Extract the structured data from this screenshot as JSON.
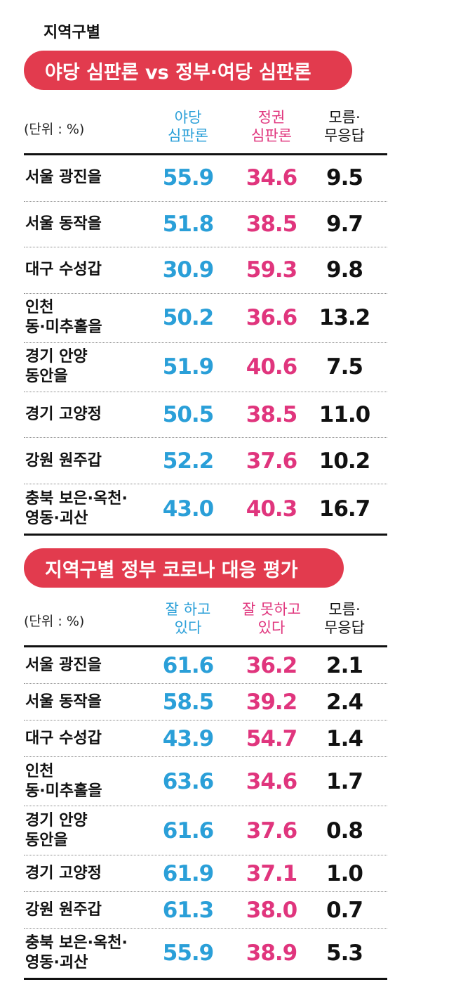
{
  "header": {
    "title": "지역구별"
  },
  "chart_data": [
    {
      "type": "table",
      "title": "야당 심판론 vs 정부·여당 심판론",
      "unit_label": "(단위 : %)",
      "columns": [
        "야당\n심판론",
        "정권\n심판론",
        "모름·\n무응답"
      ],
      "rows": [
        {
          "label": "서울 광진을",
          "values": [
            "55.9",
            "34.6",
            "9.5"
          ]
        },
        {
          "label": "서울 동작을",
          "values": [
            "51.8",
            "38.5",
            "9.7"
          ]
        },
        {
          "label": "대구 수성갑",
          "values": [
            "30.9",
            "59.3",
            "9.8"
          ]
        },
        {
          "label": "인천\n동·미추홀을",
          "values": [
            "50.2",
            "36.6",
            "13.2"
          ]
        },
        {
          "label": "경기 안양\n동안을",
          "values": [
            "51.9",
            "40.6",
            "7.5"
          ]
        },
        {
          "label": "경기 고양정",
          "values": [
            "50.5",
            "38.5",
            "11.0"
          ]
        },
        {
          "label": "강원 원주갑",
          "values": [
            "52.2",
            "37.6",
            "10.2"
          ]
        },
        {
          "label": "충북 보은·옥천·\n영동·괴산",
          "values": [
            "43.0",
            "40.3",
            "16.7"
          ]
        }
      ],
      "colors": {
        "col1": "#2a9fd8",
        "col2": "#e0357d",
        "col3": "#111111",
        "title_bg": "#e23b4e"
      }
    },
    {
      "type": "table",
      "title": "지역구별 정부 코로나 대응 평가",
      "unit_label": "(단위 : %)",
      "columns": [
        "잘 하고\n있다",
        "잘 못하고\n있다",
        "모름·\n무응답"
      ],
      "rows": [
        {
          "label": "서울 광진을",
          "values": [
            "61.6",
            "36.2",
            "2.1"
          ]
        },
        {
          "label": "서울 동작을",
          "values": [
            "58.5",
            "39.2",
            "2.4"
          ]
        },
        {
          "label": "대구 수성갑",
          "values": [
            "43.9",
            "54.7",
            "1.4"
          ]
        },
        {
          "label": "인천\n동·미추홀을",
          "values": [
            "63.6",
            "34.6",
            "1.7"
          ]
        },
        {
          "label": "경기 안양\n동안을",
          "values": [
            "61.6",
            "37.6",
            "0.8"
          ]
        },
        {
          "label": "경기 고양정",
          "values": [
            "61.9",
            "37.1",
            "1.0"
          ]
        },
        {
          "label": "강원 원주갑",
          "values": [
            "61.3",
            "38.0",
            "0.7"
          ]
        },
        {
          "label": "충북 보은·옥천·\n영동·괴산",
          "values": [
            "55.9",
            "38.9",
            "5.3"
          ]
        }
      ],
      "colors": {
        "col1": "#2a9fd8",
        "col2": "#e0357d",
        "col3": "#111111",
        "title_bg": "#e23b4e"
      }
    }
  ]
}
